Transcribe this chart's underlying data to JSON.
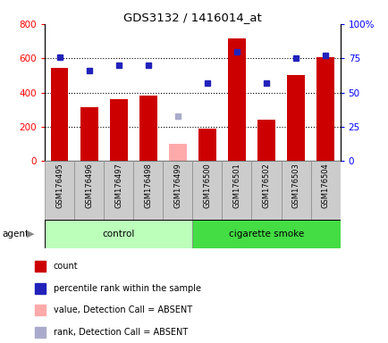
{
  "title": "GDS3132 / 1416014_at",
  "samples": [
    "GSM176495",
    "GSM176496",
    "GSM176497",
    "GSM176498",
    "GSM176499",
    "GSM176500",
    "GSM176501",
    "GSM176502",
    "GSM176503",
    "GSM176504"
  ],
  "counts": [
    545,
    315,
    360,
    385,
    null,
    190,
    715,
    240,
    505,
    605
  ],
  "counts_absent": [
    null,
    null,
    null,
    null,
    100,
    null,
    null,
    null,
    null,
    null
  ],
  "percentile_ranks": [
    76,
    66,
    70,
    70,
    null,
    57,
    80,
    57,
    75,
    77
  ],
  "ranks_absent": [
    null,
    null,
    null,
    null,
    33,
    null,
    null,
    null,
    null,
    null
  ],
  "control_indices": [
    0,
    1,
    2,
    3,
    4
  ],
  "smoke_indices": [
    5,
    6,
    7,
    8,
    9
  ],
  "ylim_left": [
    0,
    800
  ],
  "ylim_right": [
    0,
    100
  ],
  "yticks_left": [
    0,
    200,
    400,
    600,
    800
  ],
  "yticks_right": [
    0,
    25,
    50,
    75,
    100
  ],
  "ytick_labels_right": [
    "0",
    "25",
    "50",
    "75",
    "100%"
  ],
  "bar_color_red": "#cc0000",
  "bar_color_pink": "#ffaaaa",
  "dot_color_blue": "#2222bb",
  "dot_color_lightblue": "#aaaacc",
  "control_bg": "#bbffbb",
  "smoke_bg": "#44dd44",
  "tick_bg": "#cccccc",
  "agent_label": "agent",
  "control_label": "control",
  "smoke_label": "cigarette smoke",
  "legend_items": [
    {
      "color": "#cc0000",
      "label": "count"
    },
    {
      "color": "#2222bb",
      "label": "percentile rank within the sample"
    },
    {
      "color": "#ffaaaa",
      "label": "value, Detection Call = ABSENT"
    },
    {
      "color": "#aaaacc",
      "label": "rank, Detection Call = ABSENT"
    }
  ]
}
